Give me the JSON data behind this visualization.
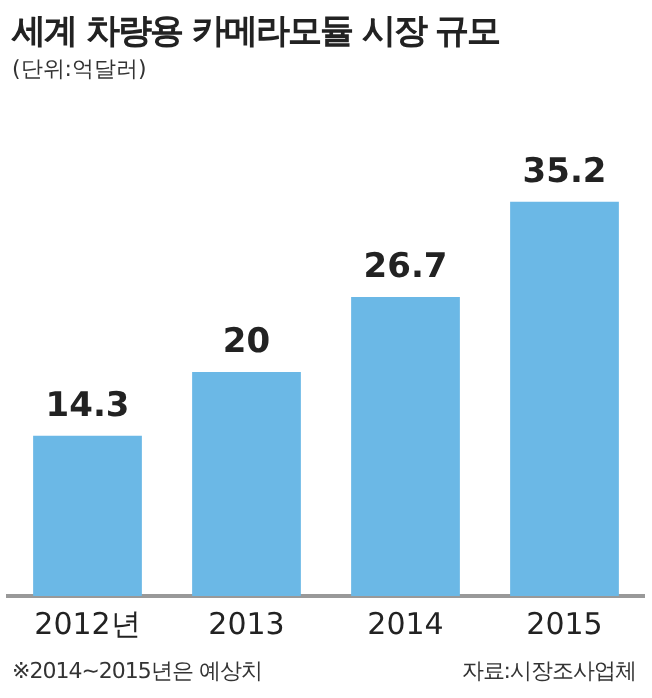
{
  "chart_data": {
    "type": "bar",
    "title": "세계 차량용 카메라모듈 시장 규모",
    "subtitle": "(단위:억달러)",
    "categories": [
      "2012년",
      "2013",
      "2014",
      "2015"
    ],
    "values": [
      14.3,
      20,
      26.7,
      35.2
    ],
    "color": "#6bb8e6",
    "data_labels": true,
    "grid": false,
    "legend": false,
    "annotations": [
      "※2014~2015년은 예상치",
      "자료:시장조사업체"
    ]
  }
}
